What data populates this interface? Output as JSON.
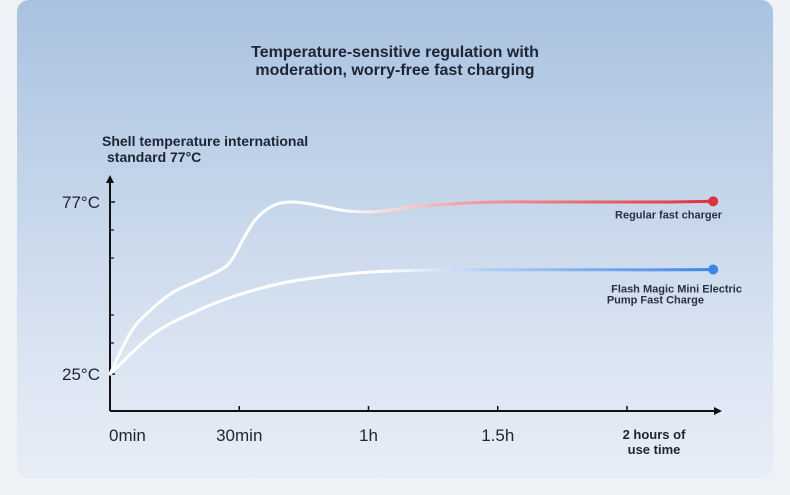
{
  "title": {
    "line1": "Temperature-sensitive regulation with",
    "line2": "moderation, worry-free fast charging"
  },
  "chart_data": {
    "type": "line",
    "title": "Temperature-sensitive regulation with moderation, worry-free fast charging",
    "ylabel": "Shell temperature international standard 77°C",
    "ylabel_lines": [
      "Shell temperature international",
      "standard 77°C"
    ],
    "y_ticks": [
      {
        "value": 25,
        "label": "25°C"
      },
      {
        "value": 77,
        "label": "77°C"
      }
    ],
    "ylim": [
      25,
      77
    ],
    "x_ticks": [
      {
        "value": 0,
        "label": "0min"
      },
      {
        "value": 30,
        "label": "30min"
      },
      {
        "value": 60,
        "label": "1h"
      },
      {
        "value": 90,
        "label": "1.5h"
      },
      {
        "value": 120,
        "label_lines": [
          "2 hours of",
          "use time"
        ]
      }
    ],
    "xlim": [
      0,
      140
    ],
    "series": [
      {
        "name": "Regular fast charger",
        "name_lines": [
          "Regular fast charger"
        ],
        "color": "#e0303a",
        "x": [
          0,
          5,
          10,
          15,
          20,
          25,
          28,
          31,
          34,
          38,
          42,
          46,
          50,
          55,
          60,
          65,
          70,
          80,
          90,
          100,
          110,
          120,
          130,
          140
        ],
        "values": [
          25,
          38,
          45,
          50,
          53,
          56,
          59,
          66,
          72,
          76,
          77,
          76.5,
          75.5,
          74.3,
          74,
          74.5,
          75.5,
          76.5,
          77,
          77,
          77,
          77,
          77,
          77.2
        ]
      },
      {
        "name": "Flash Magic Mini Electric Pump Fast Charge",
        "name_lines": [
          "Flash Magic Mini Electric",
          "Pump Fast Charge"
        ],
        "color": "#3e86e8",
        "x": [
          0,
          10,
          20,
          30,
          40,
          50,
          60,
          70,
          80,
          90,
          100,
          110,
          120,
          130,
          140
        ],
        "values": [
          25,
          37,
          44,
          49,
          52.5,
          54.5,
          55.8,
          56.3,
          56.5,
          56.5,
          56.5,
          56.5,
          56.5,
          56.5,
          56.6
        ]
      }
    ],
    "grid": false
  }
}
